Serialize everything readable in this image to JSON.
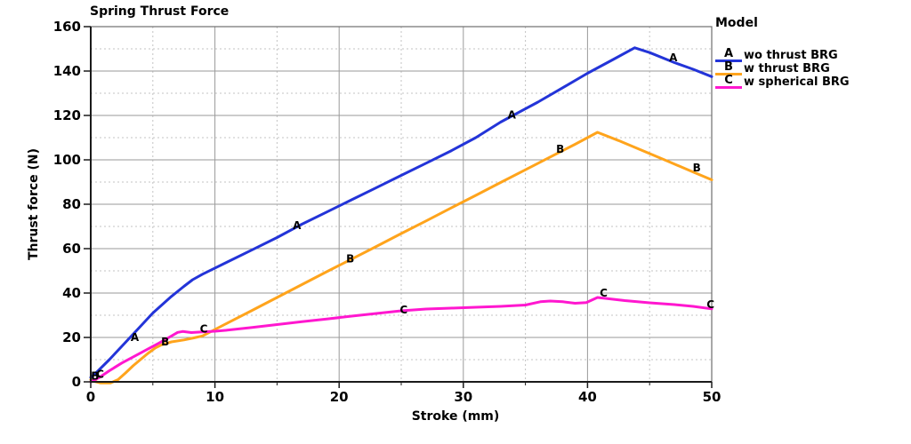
{
  "title": "Spring Thrust Force",
  "legend": {
    "title": "Model"
  },
  "colors": {
    "grid_major": "#9a9a9a",
    "grid_minor": "#c3c3c3",
    "border": "#6e6e6e",
    "axis": "#1a1a1a",
    "text": "#000000"
  },
  "chart_data": {
    "type": "line",
    "title": "Spring Thrust Force",
    "xlabel": "Stroke (mm)",
    "ylabel": "Thrust force (N)",
    "xlim": [
      0,
      50
    ],
    "ylim": [
      0,
      160
    ],
    "x_major": 10,
    "x_minor": 5,
    "y_major": 20,
    "y_minor": 10,
    "xticks": [
      "0",
      "10",
      "20",
      "30",
      "40",
      "50"
    ],
    "yticks": [
      "0",
      "20",
      "40",
      "60",
      "80",
      "100",
      "120",
      "140",
      "160"
    ],
    "grid": "major solid, minor dashed",
    "legend_position": "right-outside",
    "series": [
      {
        "name": "wo thrust BRG",
        "letter": "A",
        "color": "#2334d8",
        "points": [
          [
            0,
            2
          ],
          [
            0.5,
            4.5
          ],
          [
            1.5,
            10
          ],
          [
            2.5,
            16
          ],
          [
            3.5,
            22
          ],
          [
            5,
            31
          ],
          [
            6.5,
            38.5
          ],
          [
            7.5,
            43
          ],
          [
            8.2,
            46
          ],
          [
            9,
            48.5
          ],
          [
            11,
            54
          ],
          [
            13,
            59.5
          ],
          [
            15,
            65
          ],
          [
            17,
            71
          ],
          [
            19,
            76.5
          ],
          [
            21,
            82
          ],
          [
            23,
            87.5
          ],
          [
            25,
            93
          ],
          [
            27,
            98.5
          ],
          [
            29,
            104
          ],
          [
            31,
            110
          ],
          [
            33,
            117
          ],
          [
            34,
            120
          ],
          [
            36,
            126
          ],
          [
            38,
            132.5
          ],
          [
            40,
            139
          ],
          [
            42,
            145
          ],
          [
            43.8,
            150.5
          ],
          [
            45,
            148.3
          ],
          [
            47,
            143.8
          ],
          [
            48.5,
            140.8
          ],
          [
            50,
            137.5
          ]
        ],
        "point_labels": [
          [
            3.55,
            20
          ],
          [
            16.6,
            70.5
          ],
          [
            33.9,
            120.3
          ],
          [
            46.9,
            146
          ]
        ]
      },
      {
        "name": "w thrust BRG",
        "letter": "B",
        "color": "#ffa41c",
        "points": [
          [
            0,
            1
          ],
          [
            0.3,
            0.2
          ],
          [
            0.8,
            -0.5
          ],
          [
            1.6,
            -0.5
          ],
          [
            2.2,
            1
          ],
          [
            2.8,
            4
          ],
          [
            3.4,
            7.2
          ],
          [
            4,
            10
          ],
          [
            4.6,
            12.8
          ],
          [
            5.2,
            15.3
          ],
          [
            5.7,
            16.7
          ],
          [
            6.5,
            18
          ],
          [
            7.5,
            18.9
          ],
          [
            8.3,
            19.8
          ],
          [
            9,
            20.7
          ],
          [
            11,
            26.5
          ],
          [
            13,
            32.2
          ],
          [
            15,
            38
          ],
          [
            17,
            43.8
          ],
          [
            19,
            49.6
          ],
          [
            21,
            55.3
          ],
          [
            23,
            61
          ],
          [
            25,
            66.8
          ],
          [
            27,
            72.5
          ],
          [
            29,
            78.3
          ],
          [
            31,
            84
          ],
          [
            33,
            89.8
          ],
          [
            35,
            95.5
          ],
          [
            37,
            101.3
          ],
          [
            39,
            107
          ],
          [
            40.8,
            112.4
          ],
          [
            42.5,
            108.7
          ],
          [
            44.5,
            104
          ],
          [
            46.5,
            99.3
          ],
          [
            48.3,
            95
          ],
          [
            50,
            91
          ]
        ],
        "point_labels": [
          [
            0.35,
            2.6
          ],
          [
            6,
            18
          ],
          [
            20.9,
            55.4
          ],
          [
            37.8,
            104.8
          ],
          [
            48.8,
            96.5
          ]
        ]
      },
      {
        "name": "w spherical BRG",
        "letter": "C",
        "color": "#ff17cf",
        "points": [
          [
            0,
            0
          ],
          [
            0.7,
            2
          ],
          [
            1.5,
            5
          ],
          [
            2.5,
            8.5
          ],
          [
            3.5,
            11.5
          ],
          [
            4.5,
            14.5
          ],
          [
            5.5,
            17.5
          ],
          [
            6.3,
            20
          ],
          [
            7,
            22.3
          ],
          [
            7.4,
            22.7
          ],
          [
            8.1,
            22.2
          ],
          [
            9,
            22.5
          ],
          [
            10,
            22.8
          ],
          [
            11,
            23.3
          ],
          [
            13,
            24.5
          ],
          [
            15,
            25.8
          ],
          [
            17,
            27.1
          ],
          [
            19,
            28.3
          ],
          [
            21,
            29.6
          ],
          [
            23,
            30.8
          ],
          [
            25,
            32
          ],
          [
            27,
            32.8
          ],
          [
            29,
            33.2
          ],
          [
            31,
            33.6
          ],
          [
            33,
            34
          ],
          [
            35,
            34.6
          ],
          [
            36.2,
            36.1
          ],
          [
            37,
            36.4
          ],
          [
            38,
            36.1
          ],
          [
            39,
            35.4
          ],
          [
            39.9,
            35.7
          ],
          [
            40.8,
            38
          ],
          [
            41.6,
            37.5
          ],
          [
            43,
            36.6
          ],
          [
            45,
            35.6
          ],
          [
            47,
            34.8
          ],
          [
            48.5,
            34
          ],
          [
            50,
            32.9
          ]
        ],
        "point_labels": [
          [
            0.75,
            3.4
          ],
          [
            9.1,
            23.8
          ],
          [
            25.2,
            32.5
          ],
          [
            41.3,
            40
          ],
          [
            49.9,
            34.8
          ]
        ]
      }
    ]
  }
}
